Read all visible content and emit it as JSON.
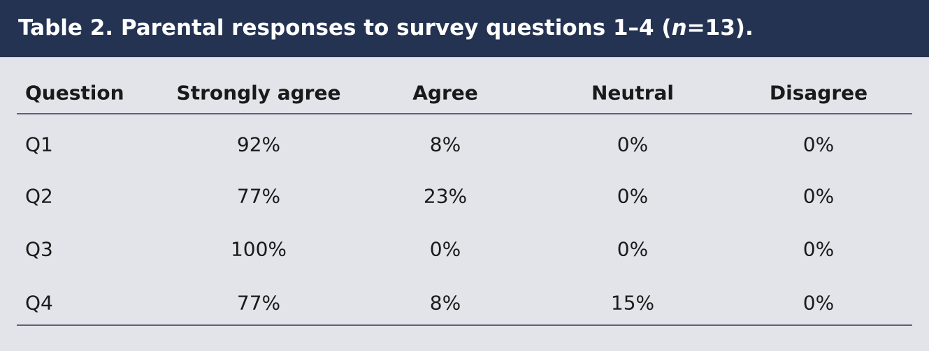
{
  "header": {
    "title": {
      "text_before": "Table 2. Parental responses to survey questions 1–4 (",
      "italic": "n",
      "text_after": "=13)."
    }
  },
  "table": {
    "columns": [
      "Question",
      "Strongly agree",
      "Agree",
      "Neutral",
      "Disagree"
    ],
    "rows": [
      [
        "Q1",
        "92%",
        "8%",
        "0%",
        "0%"
      ],
      [
        "Q2",
        "77%",
        "23%",
        "0%",
        "0%"
      ],
      [
        "Q3",
        "100%",
        "0%",
        "0%",
        "0%"
      ],
      [
        "Q4",
        "77%",
        "8%",
        "15%",
        "0%"
      ]
    ]
  }
}
